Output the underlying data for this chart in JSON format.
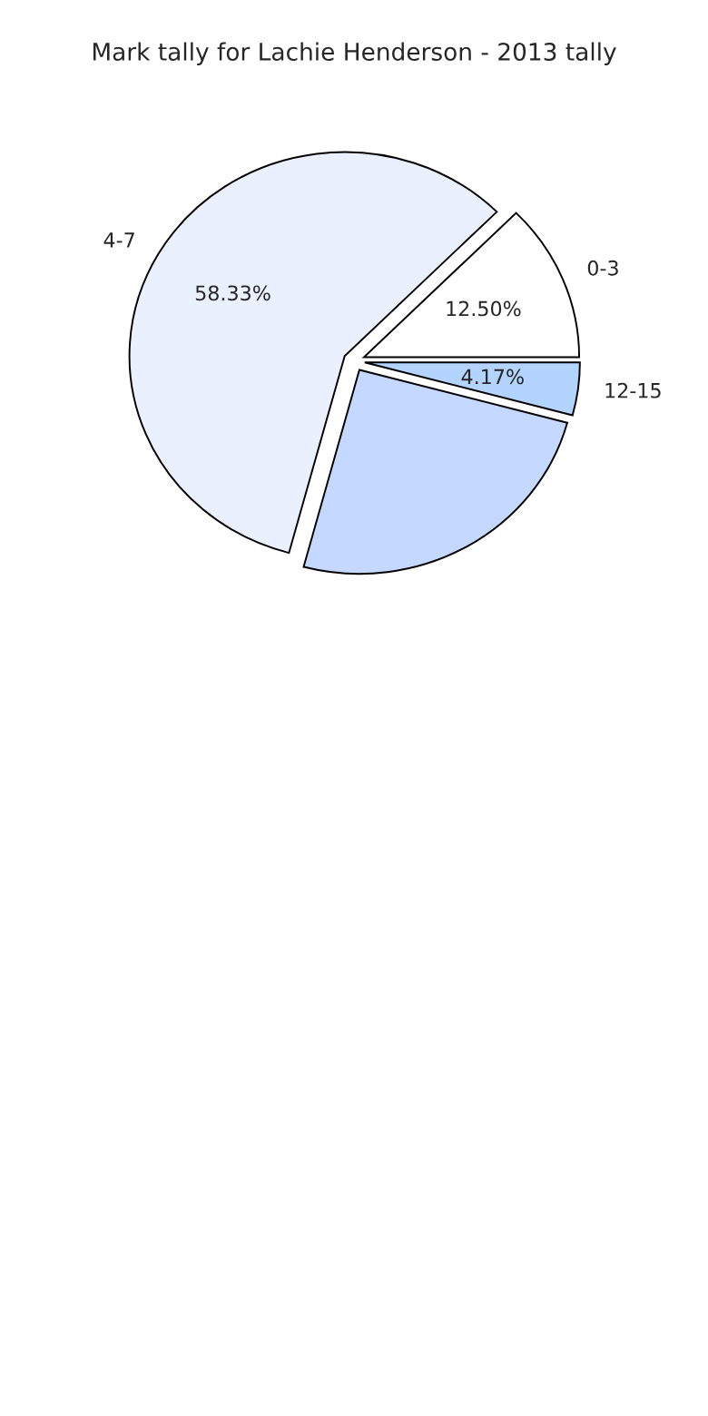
{
  "chart_data": {
    "type": "pie",
    "title": "Mark tally for Lachie Henderson - 2013 tally",
    "categories": [
      "0-3",
      "4-7",
      null,
      "12-15"
    ],
    "values": [
      12.5,
      58.33,
      25,
      4.17
    ],
    "value_labels": [
      "12.50%",
      "58.33%",
      null,
      "4.17%"
    ],
    "colors": [
      "#ffffff",
      "#eaf0fe",
      "#c5d8ff",
      "#b3d4ff"
    ]
  }
}
